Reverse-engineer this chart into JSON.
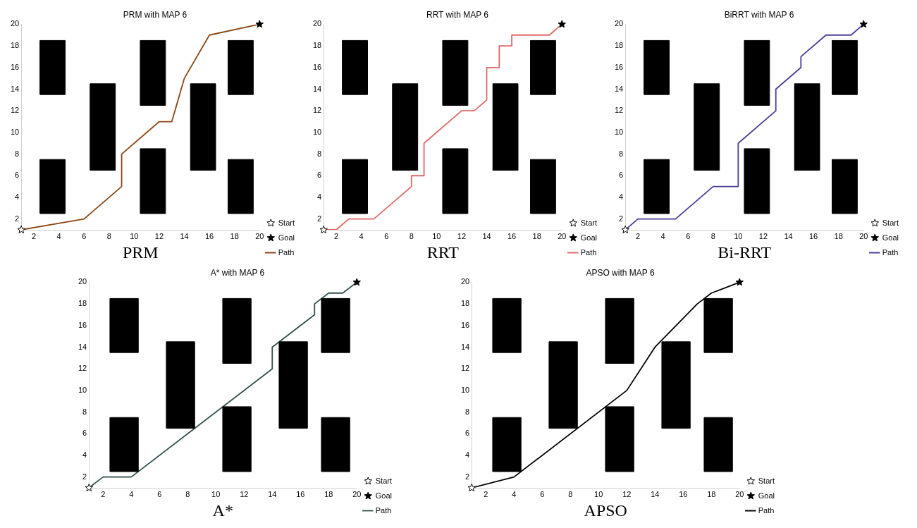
{
  "chart_data": [
    {
      "type": "line",
      "title": "PRM with MAP 6",
      "xlabel": "PRM",
      "xlim": [
        1,
        20
      ],
      "ylim": [
        1,
        20
      ],
      "xticks": [
        2,
        4,
        6,
        8,
        10,
        12,
        14,
        16,
        18,
        20
      ],
      "yticks": [
        2,
        4,
        6,
        8,
        10,
        12,
        14,
        16,
        18,
        20
      ],
      "grid": false,
      "legend": "right",
      "series": [
        {
          "type": "area",
          "color": "#000000",
          "x": [
            2.5,
            4.5,
            4.5,
            2.5,
            2.5
          ],
          "values": [
            2.5,
            2.5,
            7.5,
            7.5,
            2.5
          ]
        },
        {
          "type": "area",
          "color": "#000000",
          "x": [
            2.5,
            4.5,
            4.5,
            2.5,
            2.5
          ],
          "values": [
            13.5,
            13.5,
            18.5,
            18.5,
            13.5
          ]
        },
        {
          "type": "area",
          "color": "#000000",
          "x": [
            6.5,
            8.5,
            8.5,
            6.5,
            6.5
          ],
          "values": [
            6.5,
            6.5,
            14.5,
            14.5,
            6.5
          ]
        },
        {
          "type": "area",
          "color": "#000000",
          "x": [
            10.5,
            12.5,
            12.5,
            10.5,
            10.5
          ],
          "values": [
            2.5,
            2.5,
            8.5,
            8.5,
            2.5
          ]
        },
        {
          "type": "area",
          "color": "#000000",
          "x": [
            10.5,
            12.5,
            12.5,
            10.5,
            10.5
          ],
          "values": [
            12.5,
            12.5,
            18.5,
            18.5,
            12.5
          ]
        },
        {
          "type": "area",
          "color": "#000000",
          "x": [
            14.5,
            16.5,
            16.5,
            14.5,
            14.5
          ],
          "values": [
            6.5,
            6.5,
            14.5,
            14.5,
            6.5
          ]
        },
        {
          "type": "area",
          "color": "#000000",
          "x": [
            17.5,
            19.5,
            19.5,
            17.5,
            17.5
          ],
          "values": [
            2.5,
            2.5,
            7.5,
            7.5,
            2.5
          ]
        },
        {
          "type": "area",
          "color": "#000000",
          "x": [
            17.5,
            19.5,
            19.5,
            17.5,
            17.5
          ],
          "values": [
            13.5,
            13.5,
            18.5,
            18.5,
            13.5
          ]
        },
        {
          "type": "scatter",
          "name": "Start",
          "marker": "star",
          "color": "#ffffff",
          "x": [
            1
          ],
          "values": [
            1
          ]
        },
        {
          "type": "scatter",
          "name": "Goal",
          "marker": "star",
          "color": "#000000",
          "x": [
            20
          ],
          "values": [
            20
          ]
        },
        {
          "type": "line",
          "name": "Path",
          "color": "#8b4513",
          "x": [
            1,
            6,
            9,
            9,
            12,
            13,
            14,
            16,
            20
          ],
          "values": [
            1,
            2,
            5,
            8,
            11,
            11,
            15,
            19,
            20
          ]
        }
      ]
    },
    {
      "type": "line",
      "title": "RRT with MAP 6",
      "xlabel": "RRT",
      "xlim": [
        1,
        20
      ],
      "ylim": [
        1,
        20
      ],
      "xticks": [
        2,
        4,
        6,
        8,
        10,
        12,
        14,
        16,
        18,
        20
      ],
      "yticks": [
        2,
        4,
        6,
        8,
        10,
        12,
        14,
        16,
        18,
        20
      ],
      "grid": false,
      "legend": "right",
      "series": [
        {
          "type": "area",
          "color": "#000000",
          "x": [
            2.5,
            4.5,
            4.5,
            2.5,
            2.5
          ],
          "values": [
            2.5,
            2.5,
            7.5,
            7.5,
            2.5
          ]
        },
        {
          "type": "area",
          "color": "#000000",
          "x": [
            2.5,
            4.5,
            4.5,
            2.5,
            2.5
          ],
          "values": [
            13.5,
            13.5,
            18.5,
            18.5,
            13.5
          ]
        },
        {
          "type": "area",
          "color": "#000000",
          "x": [
            6.5,
            8.5,
            8.5,
            6.5,
            6.5
          ],
          "values": [
            6.5,
            6.5,
            14.5,
            14.5,
            6.5
          ]
        },
        {
          "type": "area",
          "color": "#000000",
          "x": [
            10.5,
            12.5,
            12.5,
            10.5,
            10.5
          ],
          "values": [
            2.5,
            2.5,
            8.5,
            8.5,
            2.5
          ]
        },
        {
          "type": "area",
          "color": "#000000",
          "x": [
            10.5,
            12.5,
            12.5,
            10.5,
            10.5
          ],
          "values": [
            12.5,
            12.5,
            18.5,
            18.5,
            12.5
          ]
        },
        {
          "type": "area",
          "color": "#000000",
          "x": [
            14.5,
            16.5,
            16.5,
            14.5,
            14.5
          ],
          "values": [
            6.5,
            6.5,
            14.5,
            14.5,
            6.5
          ]
        },
        {
          "type": "area",
          "color": "#000000",
          "x": [
            17.5,
            19.5,
            19.5,
            17.5,
            17.5
          ],
          "values": [
            2.5,
            2.5,
            7.5,
            7.5,
            2.5
          ]
        },
        {
          "type": "area",
          "color": "#000000",
          "x": [
            17.5,
            19.5,
            19.5,
            17.5,
            17.5
          ],
          "values": [
            13.5,
            13.5,
            18.5,
            18.5,
            13.5
          ]
        },
        {
          "type": "scatter",
          "name": "Start",
          "marker": "star",
          "color": "#ffffff",
          "x": [
            1
          ],
          "values": [
            1
          ]
        },
        {
          "type": "scatter",
          "name": "Goal",
          "marker": "star",
          "color": "#000000",
          "x": [
            20
          ],
          "values": [
            20
          ]
        },
        {
          "type": "line",
          "name": "Path",
          "color": "#e06666",
          "x": [
            1,
            2,
            3,
            5,
            8,
            8,
            9,
            9,
            12,
            13,
            14,
            14,
            15,
            15,
            16,
            16,
            19,
            20
          ],
          "values": [
            1,
            1,
            2,
            2,
            5,
            6,
            6,
            9,
            12,
            12,
            13,
            16,
            16,
            18,
            18,
            19,
            19,
            20
          ]
        }
      ]
    },
    {
      "type": "line",
      "title": "BiRRT with MAP 6",
      "xlabel": "Bi-RRT",
      "xlim": [
        1,
        20
      ],
      "ylim": [
        1,
        20
      ],
      "xticks": [
        2,
        4,
        6,
        8,
        10,
        12,
        14,
        16,
        18,
        20
      ],
      "yticks": [
        2,
        4,
        6,
        8,
        10,
        12,
        14,
        16,
        18,
        20
      ],
      "grid": false,
      "legend": "right",
      "series": [
        {
          "type": "area",
          "color": "#000000",
          "x": [
            2.5,
            4.5,
            4.5,
            2.5,
            2.5
          ],
          "values": [
            2.5,
            2.5,
            7.5,
            7.5,
            2.5
          ]
        },
        {
          "type": "area",
          "color": "#000000",
          "x": [
            2.5,
            4.5,
            4.5,
            2.5,
            2.5
          ],
          "values": [
            13.5,
            13.5,
            18.5,
            18.5,
            13.5
          ]
        },
        {
          "type": "area",
          "color": "#000000",
          "x": [
            6.5,
            8.5,
            8.5,
            6.5,
            6.5
          ],
          "values": [
            6.5,
            6.5,
            14.5,
            14.5,
            6.5
          ]
        },
        {
          "type": "area",
          "color": "#000000",
          "x": [
            10.5,
            12.5,
            12.5,
            10.5,
            10.5
          ],
          "values": [
            2.5,
            2.5,
            8.5,
            8.5,
            2.5
          ]
        },
        {
          "type": "area",
          "color": "#000000",
          "x": [
            10.5,
            12.5,
            12.5,
            10.5,
            10.5
          ],
          "values": [
            12.5,
            12.5,
            18.5,
            18.5,
            12.5
          ]
        },
        {
          "type": "area",
          "color": "#000000",
          "x": [
            14.5,
            16.5,
            16.5,
            14.5,
            14.5
          ],
          "values": [
            6.5,
            6.5,
            14.5,
            14.5,
            6.5
          ]
        },
        {
          "type": "area",
          "color": "#000000",
          "x": [
            17.5,
            19.5,
            19.5,
            17.5,
            17.5
          ],
          "values": [
            2.5,
            2.5,
            7.5,
            7.5,
            2.5
          ]
        },
        {
          "type": "area",
          "color": "#000000",
          "x": [
            17.5,
            19.5,
            19.5,
            17.5,
            17.5
          ],
          "values": [
            13.5,
            13.5,
            18.5,
            18.5,
            13.5
          ]
        },
        {
          "type": "scatter",
          "name": "Start",
          "marker": "star",
          "color": "#ffffff",
          "x": [
            1
          ],
          "values": [
            1
          ]
        },
        {
          "type": "scatter",
          "name": "Goal",
          "marker": "star",
          "color": "#000000",
          "x": [
            20
          ],
          "values": [
            20
          ]
        },
        {
          "type": "line",
          "name": "Path",
          "color": "#4b3d9b",
          "x": [
            1,
            2,
            5,
            8,
            10,
            10,
            13,
            13,
            15,
            15,
            17,
            19,
            20
          ],
          "values": [
            1,
            2,
            2,
            5,
            5,
            9,
            12,
            14,
            16,
            17,
            19,
            19,
            20
          ]
        }
      ]
    },
    {
      "type": "line",
      "title": "A* with MAP 6",
      "xlabel": "A*",
      "xlim": [
        1,
        20
      ],
      "ylim": [
        1,
        20
      ],
      "xticks": [
        2,
        4,
        6,
        8,
        10,
        12,
        14,
        16,
        18,
        20
      ],
      "yticks": [
        2,
        4,
        6,
        8,
        10,
        12,
        14,
        16,
        18,
        20
      ],
      "grid": false,
      "legend": "right",
      "series": [
        {
          "type": "area",
          "color": "#000000",
          "x": [
            2.5,
            4.5,
            4.5,
            2.5,
            2.5
          ],
          "values": [
            2.5,
            2.5,
            7.5,
            7.5,
            2.5
          ]
        },
        {
          "type": "area",
          "color": "#000000",
          "x": [
            2.5,
            4.5,
            4.5,
            2.5,
            2.5
          ],
          "values": [
            13.5,
            13.5,
            18.5,
            18.5,
            13.5
          ]
        },
        {
          "type": "area",
          "color": "#000000",
          "x": [
            6.5,
            8.5,
            8.5,
            6.5,
            6.5
          ],
          "values": [
            6.5,
            6.5,
            14.5,
            14.5,
            6.5
          ]
        },
        {
          "type": "area",
          "color": "#000000",
          "x": [
            10.5,
            12.5,
            12.5,
            10.5,
            10.5
          ],
          "values": [
            2.5,
            2.5,
            8.5,
            8.5,
            2.5
          ]
        },
        {
          "type": "area",
          "color": "#000000",
          "x": [
            10.5,
            12.5,
            12.5,
            10.5,
            10.5
          ],
          "values": [
            12.5,
            12.5,
            18.5,
            18.5,
            12.5
          ]
        },
        {
          "type": "area",
          "color": "#000000",
          "x": [
            14.5,
            16.5,
            16.5,
            14.5,
            14.5
          ],
          "values": [
            6.5,
            6.5,
            14.5,
            14.5,
            6.5
          ]
        },
        {
          "type": "area",
          "color": "#000000",
          "x": [
            17.5,
            19.5,
            19.5,
            17.5,
            17.5
          ],
          "values": [
            2.5,
            2.5,
            7.5,
            7.5,
            2.5
          ]
        },
        {
          "type": "area",
          "color": "#000000",
          "x": [
            17.5,
            19.5,
            19.5,
            17.5,
            17.5
          ],
          "values": [
            13.5,
            13.5,
            18.5,
            18.5,
            13.5
          ]
        },
        {
          "type": "scatter",
          "name": "Start",
          "marker": "star",
          "color": "#ffffff",
          "x": [
            1
          ],
          "values": [
            1
          ]
        },
        {
          "type": "scatter",
          "name": "Goal",
          "marker": "star",
          "color": "#000000",
          "x": [
            20
          ],
          "values": [
            20
          ]
        },
        {
          "type": "line",
          "name": "Path",
          "color": "#2f4f4f",
          "x": [
            1,
            2,
            4,
            14,
            14,
            17,
            17,
            18,
            19,
            20
          ],
          "values": [
            1,
            2,
            2,
            12,
            14,
            17,
            18,
            19,
            19,
            20
          ]
        }
      ]
    },
    {
      "type": "line",
      "title": "APSO with MAP 6",
      "xlabel": "APSO",
      "xlim": [
        1,
        20
      ],
      "ylim": [
        1,
        20
      ],
      "xticks": [
        2,
        4,
        6,
        8,
        10,
        12,
        14,
        16,
        18,
        20
      ],
      "yticks": [
        2,
        4,
        6,
        8,
        10,
        12,
        14,
        16,
        18,
        20
      ],
      "grid": false,
      "legend": "right",
      "series": [
        {
          "type": "area",
          "color": "#000000",
          "x": [
            2.5,
            4.5,
            4.5,
            2.5,
            2.5
          ],
          "values": [
            2.5,
            2.5,
            7.5,
            7.5,
            2.5
          ]
        },
        {
          "type": "area",
          "color": "#000000",
          "x": [
            2.5,
            4.5,
            4.5,
            2.5,
            2.5
          ],
          "values": [
            13.5,
            13.5,
            18.5,
            18.5,
            13.5
          ]
        },
        {
          "type": "area",
          "color": "#000000",
          "x": [
            6.5,
            8.5,
            8.5,
            6.5,
            6.5
          ],
          "values": [
            6.5,
            6.5,
            14.5,
            14.5,
            6.5
          ]
        },
        {
          "type": "area",
          "color": "#000000",
          "x": [
            10.5,
            12.5,
            12.5,
            10.5,
            10.5
          ],
          "values": [
            2.5,
            2.5,
            8.5,
            8.5,
            2.5
          ]
        },
        {
          "type": "area",
          "color": "#000000",
          "x": [
            10.5,
            12.5,
            12.5,
            10.5,
            10.5
          ],
          "values": [
            12.5,
            12.5,
            18.5,
            18.5,
            12.5
          ]
        },
        {
          "type": "area",
          "color": "#000000",
          "x": [
            14.5,
            16.5,
            16.5,
            14.5,
            14.5
          ],
          "values": [
            6.5,
            6.5,
            14.5,
            14.5,
            6.5
          ]
        },
        {
          "type": "area",
          "color": "#000000",
          "x": [
            17.5,
            19.5,
            19.5,
            17.5,
            17.5
          ],
          "values": [
            2.5,
            2.5,
            7.5,
            7.5,
            2.5
          ]
        },
        {
          "type": "area",
          "color": "#000000",
          "x": [
            17.5,
            19.5,
            19.5,
            17.5,
            17.5
          ],
          "values": [
            13.5,
            13.5,
            18.5,
            18.5,
            13.5
          ]
        },
        {
          "type": "scatter",
          "name": "Start",
          "marker": "star",
          "color": "#ffffff",
          "x": [
            1
          ],
          "values": [
            1
          ]
        },
        {
          "type": "scatter",
          "name": "Goal",
          "marker": "star",
          "color": "#000000",
          "x": [
            20
          ],
          "values": [
            20
          ]
        },
        {
          "type": "line",
          "name": "Path",
          "color": "#000000",
          "x": [
            1,
            4,
            12,
            14,
            17,
            18,
            20
          ],
          "values": [
            1,
            2,
            10,
            14,
            18,
            19,
            20
          ]
        }
      ]
    }
  ]
}
